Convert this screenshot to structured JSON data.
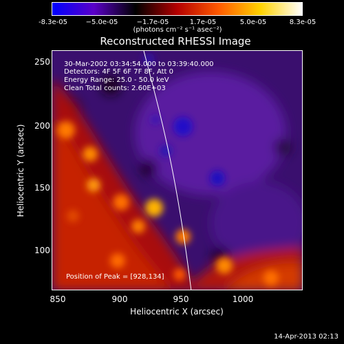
{
  "colorbar": {
    "ticks": [
      "-8.3e-05",
      "−5.0e-05",
      "−1.7e-05",
      "1.7e-05",
      "5.0e-05",
      "8.3e-05"
    ],
    "units": "(photons cm⁻² s⁻¹ asec⁻²)",
    "colors": [
      "#0000ff",
      "#5a00c8",
      "#000000",
      "#b40000",
      "#ff5a00",
      "#ffd200",
      "#ffffff"
    ]
  },
  "plot": {
    "title": "Reconstructed RHESSI Image",
    "annotations": [
      "30-Mar-2002 03:34:54.000 to 03:39:40.000",
      "Detectors: 4F 5F 6F 7F 8F, Att 0",
      "Energy Range: 25.0 - 50.0 keV",
      "Clean    Total counts: 2.60E+03"
    ],
    "peak_label": "Position of Peak = [928,134]",
    "xlabel": "Heliocentric X (arcsec)",
    "ylabel": "Heliocentric Y (arcsec)",
    "xticks": [
      "850",
      "900",
      "950",
      "1000"
    ],
    "yticks": [
      "250",
      "200",
      "150",
      "100"
    ]
  },
  "footer": {
    "timestamp": "14-Apr-2013 02:13"
  }
}
